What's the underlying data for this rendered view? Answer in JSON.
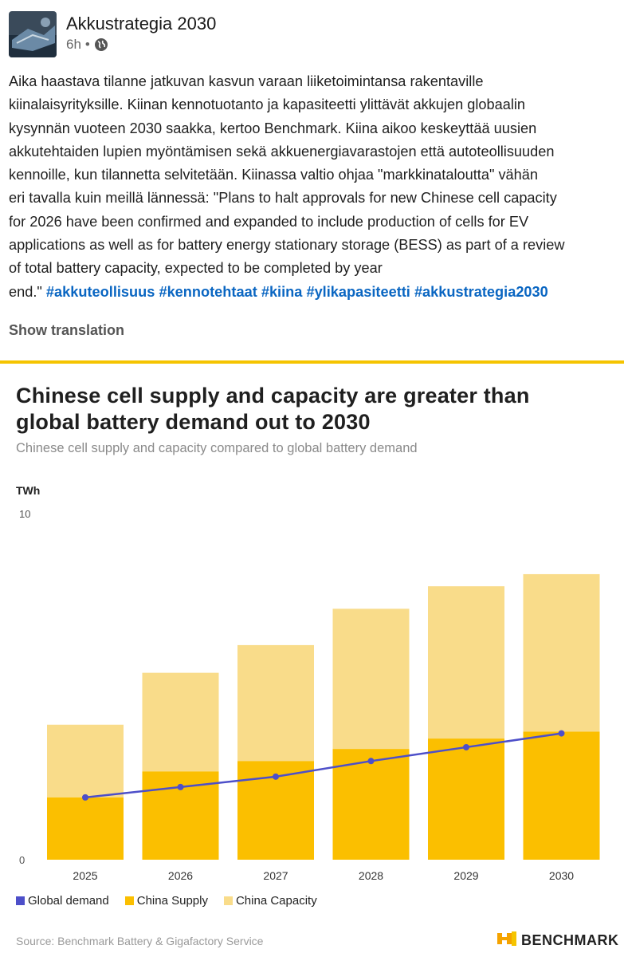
{
  "post": {
    "author": "Akkustrategia 2030",
    "time": "6h",
    "separator": "•",
    "visibility_icon": "globe-icon",
    "lines": [
      "Aika haastava tilanne jatkuvan kasvun varaan liiketoimintansa rakentaville",
      "kiinalaisyrityksille. Kiinan kennotuotanto ja kapasiteetti ylittävät akkujen globaalin",
      "kysynnän vuoteen 2030 saakka, kertoo Benchmark. Kiina aikoo keskeyttää uusien",
      "akkutehtaiden lupien myöntämisen sekä akkuenergiavarastojen että autoteollisuuden",
      "kennoille, kun tilannetta selvitetään. Kiinassa valtio ohjaa \"markkinataloutta\" vähän",
      "eri tavalla kuin meillä lännessä: \"Plans to halt approvals for new Chinese cell capacity",
      "for 2026 have been confirmed and expanded to include production of cells for EV",
      "applications as well as for battery energy stationary storage (BESS) as part of a review",
      "of total battery capacity, expected to be completed by year"
    ],
    "last_line_text": "end.\"",
    "hashtags": [
      "#akkuteollisuus",
      "#kennotehtaat",
      "#kiina",
      "#ylikapasiteetti",
      "#akkustrategia2030"
    ],
    "show_translation": "Show translation"
  },
  "colors": {
    "divider": "#f5c400",
    "supply": "#fbbf00",
    "capacity": "#f9dc8a",
    "demand": "#4d4fc9",
    "hashtag": "#0a66c2"
  },
  "chart": {
    "title_line1": "Chinese cell supply and capacity are greater than",
    "title_line2": "global battery demand out to 2030",
    "subtitle": "Chinese cell supply and capacity compared to global battery demand",
    "unit": "TWh",
    "source": "Source: Benchmark Battery & Gigafactory Service",
    "brand": "BENCHMARK",
    "legend": {
      "demand": "Global demand",
      "supply": "China Supply",
      "capacity": "China Capacity"
    }
  },
  "chart_data": {
    "type": "bar",
    "stacked": true,
    "categories": [
      "2025",
      "2026",
      "2027",
      "2028",
      "2029",
      "2030"
    ],
    "series": [
      {
        "name": "China Supply",
        "type": "bar",
        "values": [
          1.8,
          2.55,
          2.85,
          3.2,
          3.5,
          3.7
        ]
      },
      {
        "name": "China Capacity",
        "type": "bar",
        "values": [
          2.1,
          2.85,
          3.35,
          4.05,
          4.4,
          4.55
        ]
      },
      {
        "name": "Global demand",
        "type": "line",
        "values": [
          1.8,
          2.1,
          2.4,
          2.85,
          3.25,
          3.65
        ]
      }
    ],
    "ylabel": "TWh",
    "ylim": [
      0,
      10
    ],
    "yticks": [
      "0",
      "10"
    ],
    "grid": false,
    "legend_position": "bottom-left"
  }
}
